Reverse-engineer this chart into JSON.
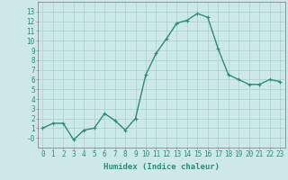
{
  "x": [
    0,
    1,
    2,
    3,
    4,
    5,
    6,
    7,
    8,
    9,
    10,
    11,
    12,
    13,
    14,
    15,
    16,
    17,
    18,
    19,
    20,
    21,
    22,
    23
  ],
  "y": [
    1,
    1.5,
    1.5,
    -0.2,
    0.8,
    1,
    2.5,
    1.8,
    0.8,
    2,
    6.5,
    8.7,
    10.2,
    11.8,
    12.1,
    12.8,
    12.4,
    9.2,
    6.5,
    6,
    5.5,
    5.5,
    6,
    5.8
  ],
  "line_color": "#2e8b74",
  "marker": "+",
  "markersize": 3,
  "linewidth": 1.0,
  "bg_color": "#cce8e8",
  "grid_color": "#aacfcf",
  "xlabel": "Humidex (Indice chaleur)",
  "xlim": [
    -0.5,
    23.5
  ],
  "ylim": [
    -1,
    14
  ],
  "ytick_vals": [
    0,
    1,
    2,
    3,
    4,
    5,
    6,
    7,
    8,
    9,
    10,
    11,
    12,
    13
  ],
  "ytick_labels": [
    "-0",
    "1",
    "2",
    "3",
    "4",
    "5",
    "6",
    "7",
    "8",
    "9",
    "10",
    "11",
    "12",
    "13"
  ],
  "xtick_vals": [
    0,
    1,
    2,
    3,
    4,
    5,
    6,
    7,
    8,
    9,
    10,
    11,
    12,
    13,
    14,
    15,
    16,
    17,
    18,
    19,
    20,
    21,
    22,
    23
  ],
  "xlabel_fontsize": 6.5,
  "tick_fontsize": 5.5,
  "spine_color": "#888888"
}
